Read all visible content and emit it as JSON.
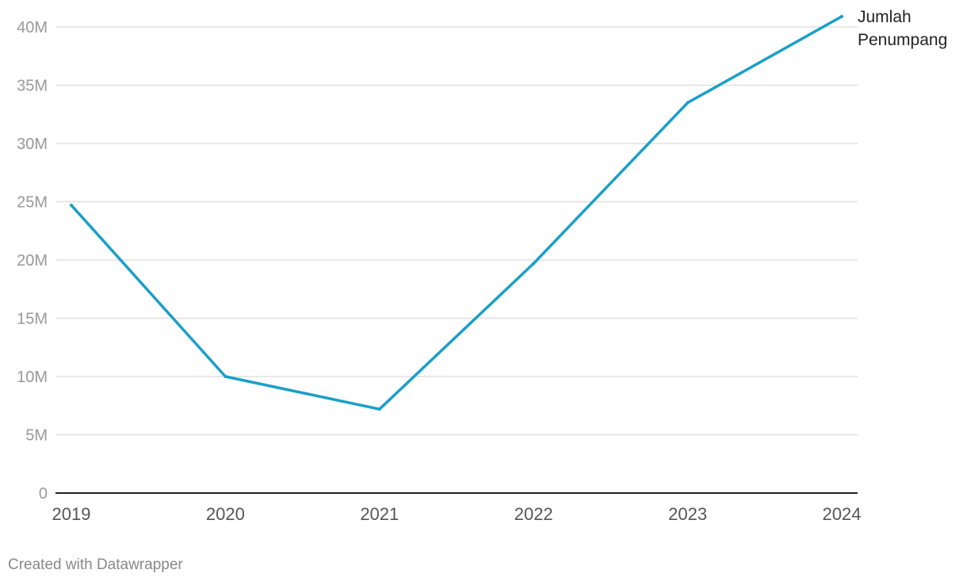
{
  "chart_data": {
    "type": "line",
    "x": [
      "2019",
      "2020",
      "2021",
      "2022",
      "2023",
      "2024"
    ],
    "series": [
      {
        "name": "Jumlah Penumpang",
        "name_lines": [
          "Jumlah",
          "Penumpang"
        ],
        "values": [
          24700000,
          10000000,
          7200000,
          19700000,
          33500000,
          40900000
        ],
        "color": "#1a9fc9"
      }
    ],
    "yticks": [
      0,
      5000000,
      10000000,
      15000000,
      20000000,
      25000000,
      30000000,
      35000000,
      40000000
    ],
    "ytick_labels": [
      "0",
      "5M",
      "10M",
      "15M",
      "20M",
      "25M",
      "30M",
      "35M",
      "40M"
    ],
    "ylim": [
      0,
      40000000
    ],
    "grid": true,
    "title": "",
    "xlabel": "",
    "ylabel": ""
  },
  "footer": {
    "credit": "Created with Datawrapper"
  },
  "colors": {
    "line": "#1a9fc9",
    "grid": "#e0e0e0",
    "axis": "#222222"
  }
}
